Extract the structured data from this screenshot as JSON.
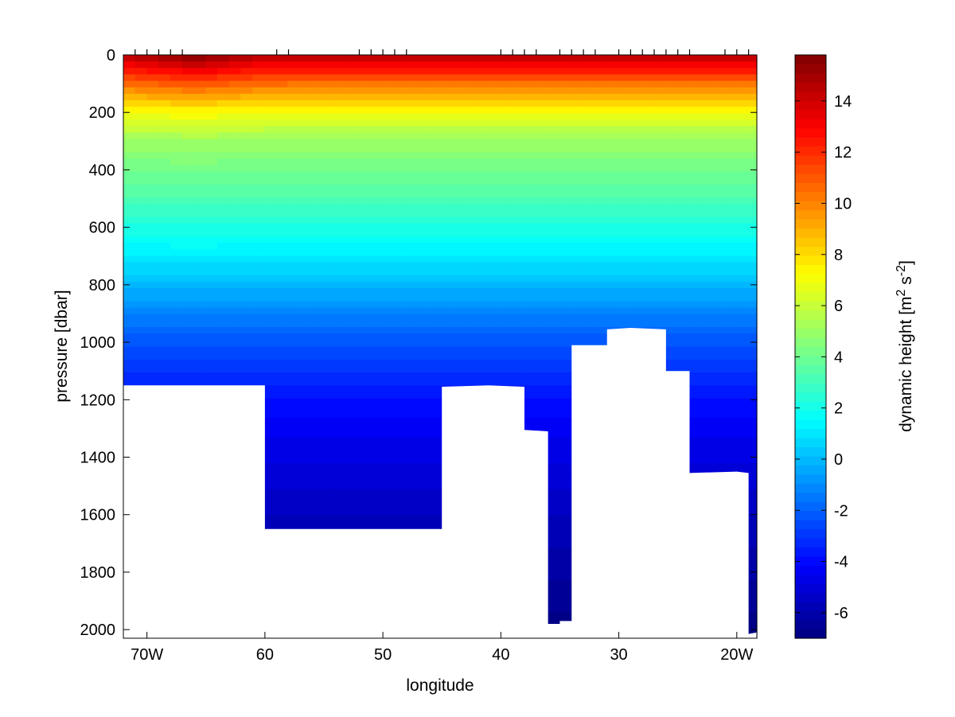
{
  "chart_data": {
    "type": "heatmap",
    "title": "",
    "xlabel": "longitude",
    "ylabel": "pressure [dbar]",
    "xlim": [
      -72,
      -18.3
    ],
    "ylim": [
      0,
      2030
    ],
    "y_reversed": true,
    "x_ticks": [
      {
        "value": -70,
        "label": "70W"
      },
      {
        "value": -60,
        "label": "60"
      },
      {
        "value": -50,
        "label": "50"
      },
      {
        "value": -40,
        "label": "40"
      },
      {
        "value": -30,
        "label": "30"
      },
      {
        "value": -20,
        "label": "20W"
      }
    ],
    "y_ticks": [
      0,
      200,
      400,
      600,
      800,
      1000,
      1200,
      1400,
      1600,
      1800,
      2000
    ],
    "station_longitudes": [
      -71.0,
      -70.0,
      -69.0,
      -68.0,
      -67.0,
      -59.0,
      -58.0,
      -52.0,
      -51.0,
      -50.0,
      -49.0,
      -48.0,
      -40.0,
      -39.0,
      -38.0,
      -37.0,
      -35.0,
      -34.0,
      -33.0,
      -32.0,
      -30.0,
      -29.0,
      -28.0,
      -27.0,
      -26.0,
      -25.0,
      -24.0,
      -21.0,
      -20.0,
      -19.0
    ],
    "bottom_depth_profile": [
      {
        "lon": -72.0,
        "pressure": 1150
      },
      {
        "lon": -60.0,
        "pressure": 1150
      },
      {
        "lon": -60.0,
        "pressure": 1650
      },
      {
        "lon": -48.0,
        "pressure": 1650
      },
      {
        "lon": -45.0,
        "pressure": 1650
      },
      {
        "lon": -45.0,
        "pressure": 1750
      },
      {
        "lon": -45.0,
        "pressure": 1155
      },
      {
        "lon": -41.0,
        "pressure": 1150
      },
      {
        "lon": -38.0,
        "pressure": 1155
      },
      {
        "lon": -38.0,
        "pressure": 1305
      },
      {
        "lon": -36.0,
        "pressure": 1310
      },
      {
        "lon": -36.0,
        "pressure": 1980
      },
      {
        "lon": -35.0,
        "pressure": 1980
      },
      {
        "lon": -35.0,
        "pressure": 2005
      },
      {
        "lon": -35.0,
        "pressure": 1970
      },
      {
        "lon": -34.0,
        "pressure": 1970
      },
      {
        "lon": -34.0,
        "pressure": 1010
      },
      {
        "lon": -31.0,
        "pressure": 1010
      },
      {
        "lon": -31.0,
        "pressure": 1210
      },
      {
        "lon": -31.0,
        "pressure": 955
      },
      {
        "lon": -29.0,
        "pressure": 950
      },
      {
        "lon": -26.0,
        "pressure": 955
      },
      {
        "lon": -26.0,
        "pressure": 1100
      },
      {
        "lon": -24.0,
        "pressure": 1100
      },
      {
        "lon": -24.0,
        "pressure": 1500
      },
      {
        "lon": -24.0,
        "pressure": 1455
      },
      {
        "lon": -20.0,
        "pressure": 1450
      },
      {
        "lon": -19.0,
        "pressure": 1455
      },
      {
        "lon": -19.0,
        "pressure": 2015
      },
      {
        "lon": -18.3,
        "pressure": 2010
      }
    ],
    "field_profile_pressure": [
      0,
      100,
      200,
      300,
      400,
      500,
      600,
      700,
      800,
      900,
      1000,
      1200,
      1400,
      1600,
      1800,
      2000
    ],
    "field_profile_value": [
      14.5,
      10.5,
      7.0,
      5.0,
      4.1,
      3.2,
      2.2,
      1.2,
      0.0,
      -1.2,
      -2.3,
      -3.8,
      -4.8,
      -5.6,
      -6.2,
      -6.8
    ],
    "surface_max": {
      "lon": -66.0,
      "value": 15.8
    },
    "colorbar": {
      "label": "dynamic height [m",
      "label_sup1": "2",
      "label_mid": " s",
      "label_sup2": "-2",
      "label_end": "]",
      "range": [
        -7,
        15.8
      ],
      "ticks": [
        -6,
        -4,
        -2,
        0,
        2,
        4,
        6,
        8,
        10,
        12,
        14
      ],
      "colormap": "jet",
      "levels": 64
    }
  }
}
